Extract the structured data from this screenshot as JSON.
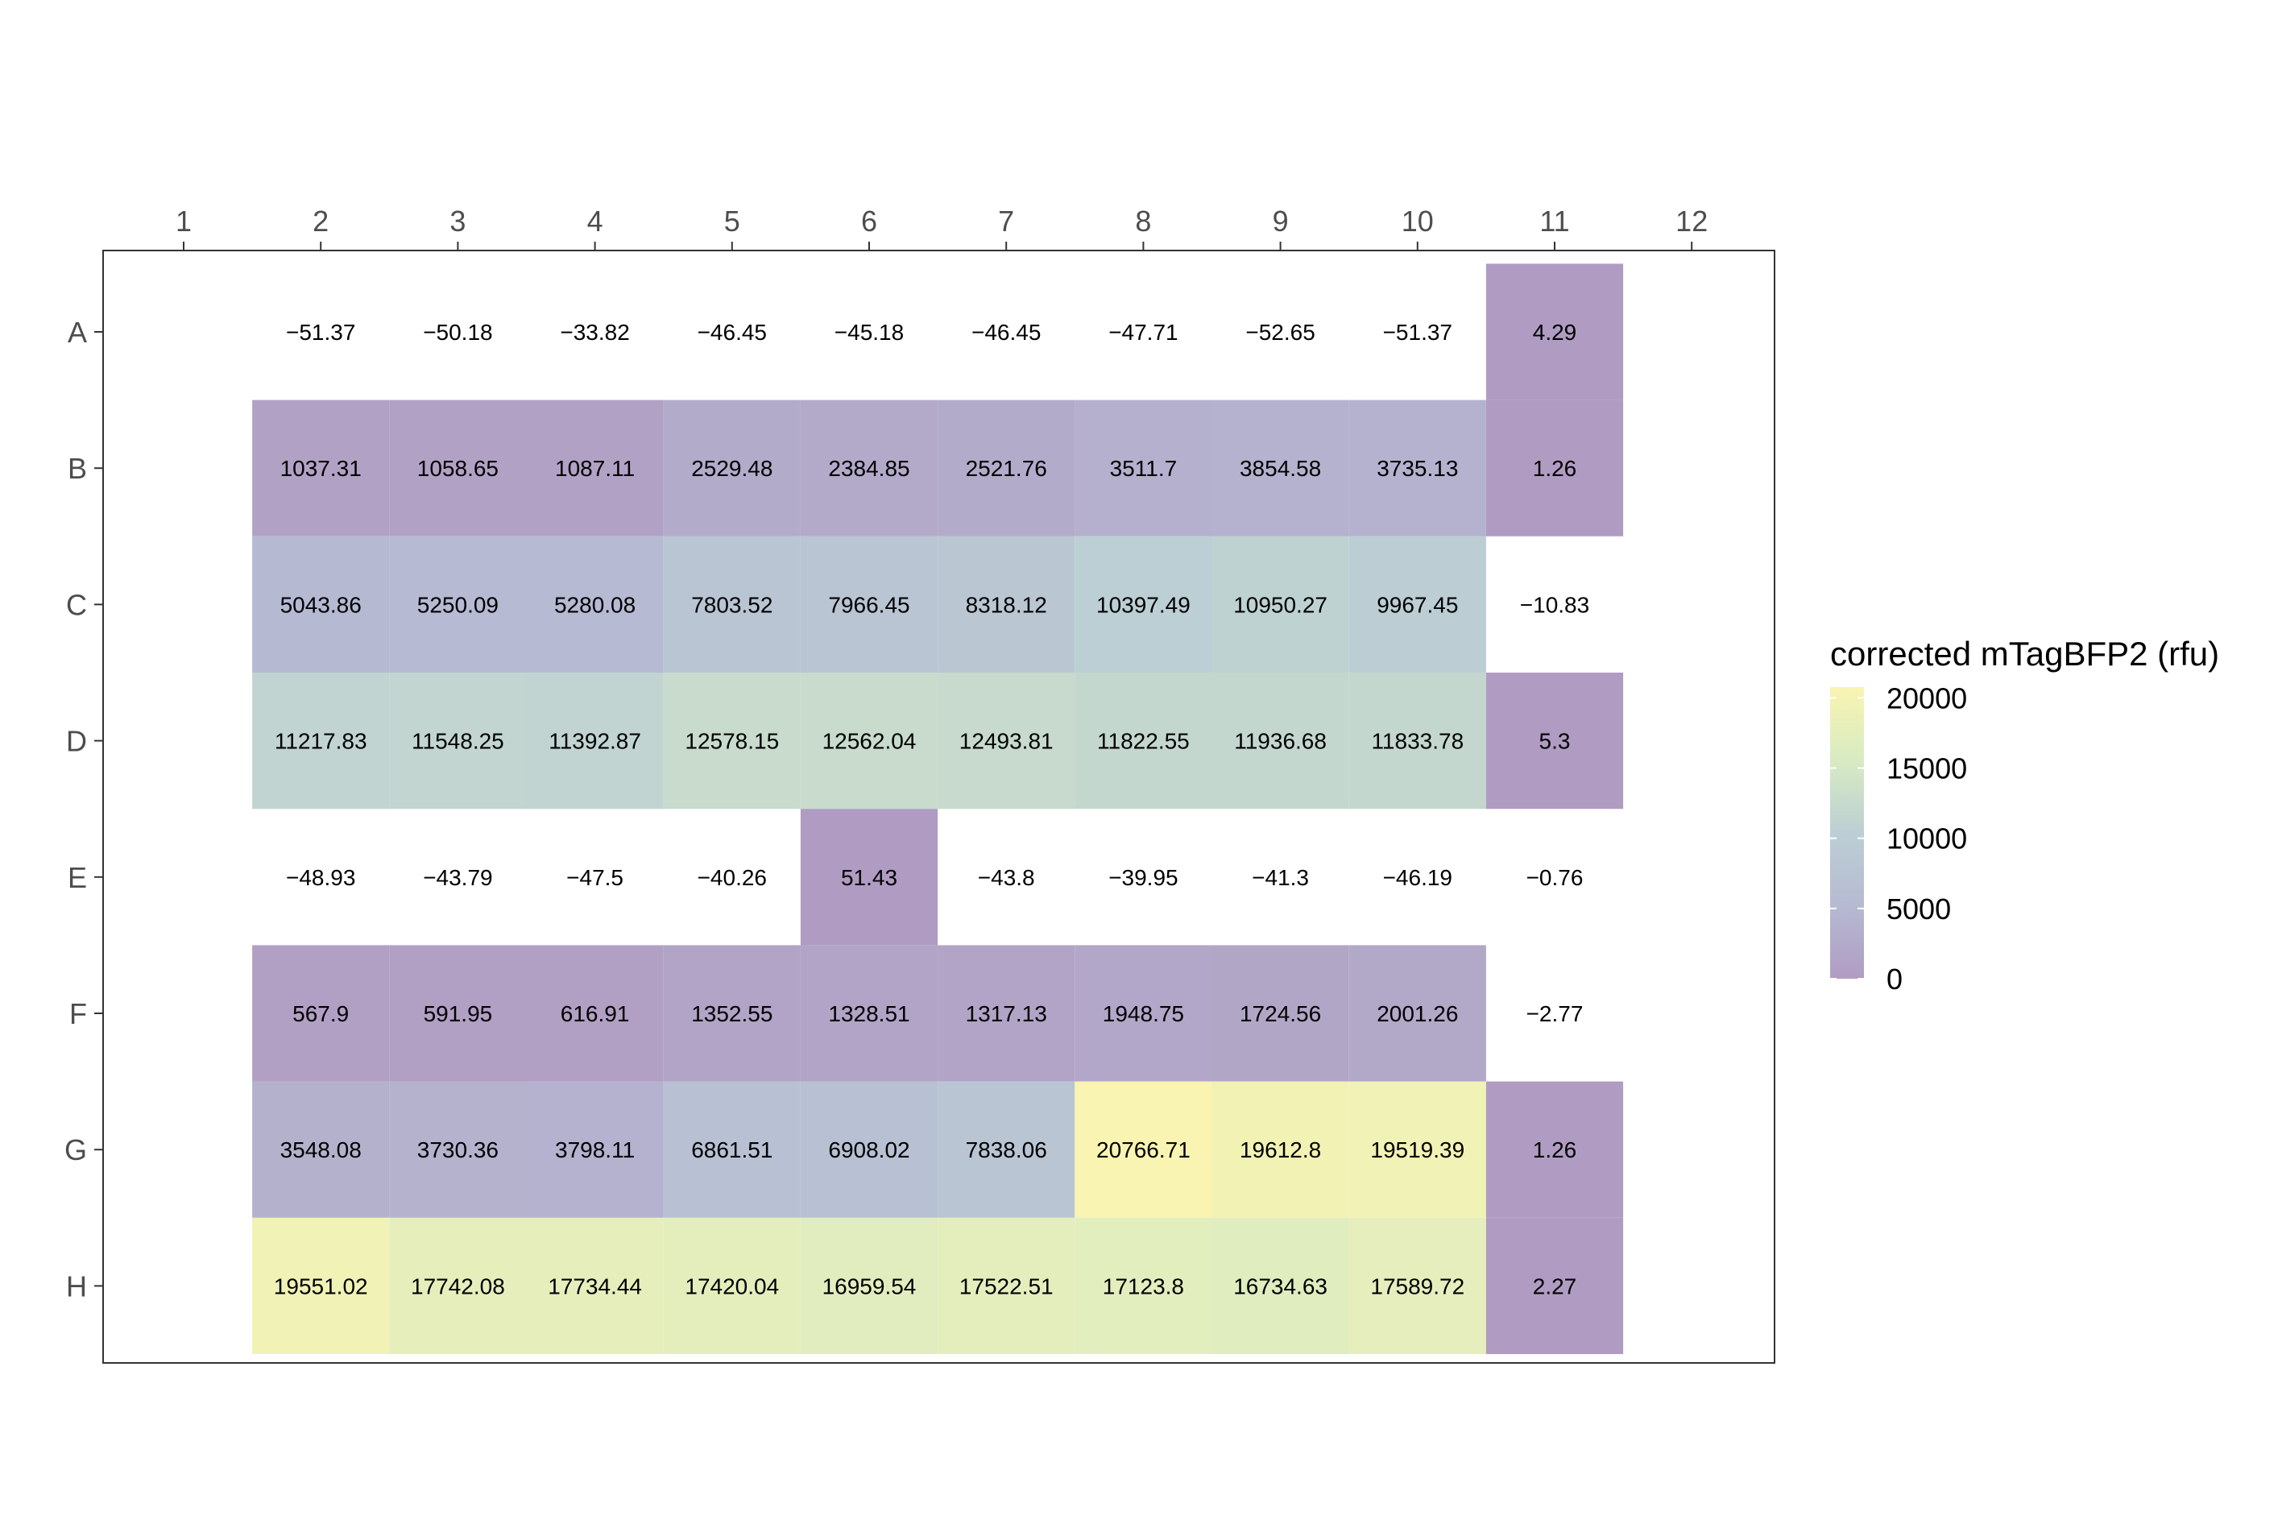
{
  "chart_data": {
    "type": "heatmap",
    "title": "",
    "xlabel": "",
    "ylabel": "",
    "columns": [
      "1",
      "2",
      "3",
      "4",
      "5",
      "6",
      "7",
      "8",
      "9",
      "10",
      "11",
      "12"
    ],
    "rows": [
      "A",
      "B",
      "C",
      "D",
      "E",
      "F",
      "G",
      "H"
    ],
    "values": [
      [
        null,
        -51.37,
        -50.18,
        -33.82,
        -46.45,
        -45.18,
        -46.45,
        -47.71,
        -52.65,
        -51.37,
        4.29,
        null
      ],
      [
        null,
        1037.31,
        1058.65,
        1087.11,
        2529.48,
        2384.85,
        2521.76,
        3511.7,
        3854.58,
        3735.13,
        1.26,
        null
      ],
      [
        null,
        5043.86,
        5250.09,
        5280.08,
        7803.52,
        7966.45,
        8318.12,
        10397.49,
        10950.27,
        9967.45,
        -10.83,
        null
      ],
      [
        null,
        11217.83,
        11548.25,
        11392.87,
        12578.15,
        12562.04,
        12493.81,
        11822.55,
        11936.68,
        11833.78,
        5.3,
        null
      ],
      [
        null,
        -48.93,
        -43.79,
        -47.5,
        -40.26,
        51.43,
        -43.8,
        -39.95,
        -41.3,
        -46.19,
        -0.76,
        null
      ],
      [
        null,
        567.9,
        591.95,
        616.91,
        1352.55,
        1328.51,
        1317.13,
        1948.75,
        1724.56,
        2001.26,
        -2.77,
        null
      ],
      [
        null,
        3548.08,
        3730.36,
        3798.11,
        6861.51,
        6908.02,
        7838.06,
        20766.71,
        19612.8,
        19519.39,
        1.26,
        null
      ],
      [
        null,
        19551.02,
        17742.08,
        17734.44,
        17420.04,
        16959.54,
        17522.51,
        17123.8,
        16734.63,
        17589.72,
        2.27,
        null
      ]
    ],
    "cell_labels": [
      [
        "",
        "−51.37",
        "−50.18",
        "−33.82",
        "−46.45",
        "−45.18",
        "−46.45",
        "−47.71",
        "−52.65",
        "−51.37",
        "4.29",
        ""
      ],
      [
        "",
        "1037.31",
        "1058.65",
        "1087.11",
        "2529.48",
        "2384.85",
        "2521.76",
        "3511.7",
        "3854.58",
        "3735.13",
        "1.26",
        ""
      ],
      [
        "",
        "5043.86",
        "5250.09",
        "5280.08",
        "7803.52",
        "7966.45",
        "8318.12",
        "10397.49",
        "10950.27",
        "9967.45",
        "−10.83",
        ""
      ],
      [
        "",
        "11217.83",
        "11548.25",
        "11392.87",
        "12578.15",
        "12562.04",
        "12493.81",
        "11822.55",
        "11936.68",
        "11833.78",
        "5.3",
        ""
      ],
      [
        "",
        "−48.93",
        "−43.79",
        "−47.5",
        "−40.26",
        "51.43",
        "−43.8",
        "−39.95",
        "−41.3",
        "−46.19",
        "−0.76",
        ""
      ],
      [
        "",
        "567.9",
        "591.95",
        "616.91",
        "1352.55",
        "1328.51",
        "1317.13",
        "1948.75",
        "1724.56",
        "2001.26",
        "−2.77",
        ""
      ],
      [
        "",
        "3548.08",
        "3730.36",
        "3798.11",
        "6861.51",
        "6908.02",
        "7838.06",
        "20766.71",
        "19612.8",
        "19519.39",
        "1.26",
        ""
      ],
      [
        "",
        "19551.02",
        "17742.08",
        "17734.44",
        "17420.04",
        "16959.54",
        "17522.51",
        "17123.8",
        "16734.63",
        "17589.72",
        "2.27",
        ""
      ]
    ],
    "note_values": "Cells with values below 0 are drawn without fill (white); cells with no label are empty wells.",
    "legend": {
      "title": "corrected mTagBFP2 (rfu)",
      "placement": "right",
      "ticks": [
        0,
        5000,
        10000,
        15000,
        20000
      ],
      "tick_labels": [
        "0",
        "5000",
        "10000",
        "15000",
        "20000"
      ],
      "range": [
        0,
        20766.71
      ],
      "colors": [
        "#b09cc2",
        "#b6bad2",
        "#bccfd4",
        "#d8ebc3",
        "#f9f4b1"
      ]
    },
    "x_axis_position": "top",
    "grid": false
  }
}
